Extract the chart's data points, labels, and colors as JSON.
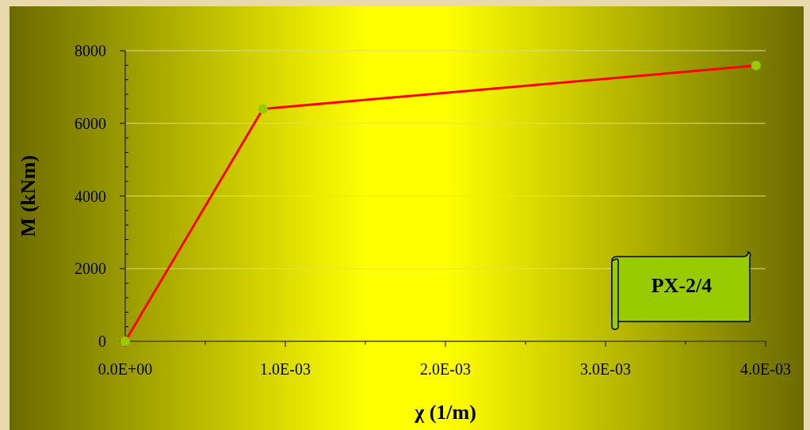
{
  "chart_data": {
    "type": "line",
    "xlabel": "χ  (1/m)",
    "ylabel": "M (kNm)",
    "x": [
      0,
      0.00086,
      0.00394
    ],
    "series": [
      {
        "color": "#ff0000",
        "values": [
          0,
          6400,
          7590
        ]
      }
    ],
    "marker": "circle",
    "grid": "y",
    "xlim": [
      0,
      0.004
    ],
    "ylim": [
      0,
      8000
    ],
    "xticks": [
      {
        "value": 0,
        "label": "0.0E+00"
      },
      {
        "value": 0.0005,
        "label": null
      },
      {
        "value": 0.001,
        "label": "1.0E-03"
      },
      {
        "value": 0.0015,
        "label": null
      },
      {
        "value": 0.002,
        "label": "2.0E-03"
      },
      {
        "value": 0.0025,
        "label": null
      },
      {
        "value": 0.003,
        "label": "3.0E-03"
      },
      {
        "value": 0.0035,
        "label": null
      },
      {
        "value": 0.004,
        "label": "4.0E-03"
      }
    ],
    "yticks": [
      0,
      {
        "value": 400,
        "label": null
      },
      {
        "value": 800,
        "label": null
      },
      {
        "value": 1200,
        "label": null
      },
      {
        "value": 1600,
        "label": null
      },
      2000,
      {
        "value": 2400,
        "label": null
      },
      {
        "value": 2800,
        "label": null
      },
      {
        "value": 3200,
        "label": null
      },
      {
        "value": 3600,
        "label": null
      },
      4000,
      {
        "value": 4400,
        "label": null
      },
      {
        "value": 4800,
        "label": null
      },
      {
        "value": 5200,
        "label": null
      },
      {
        "value": 5600,
        "label": null
      },
      6000,
      {
        "value": 6400,
        "label": null
      },
      {
        "value": 6800,
        "label": null
      },
      {
        "value": 7200,
        "label": null
      },
      {
        "value": 7600,
        "label": null
      },
      8000
    ],
    "annotations": [
      "PX-2/4"
    ]
  }
}
